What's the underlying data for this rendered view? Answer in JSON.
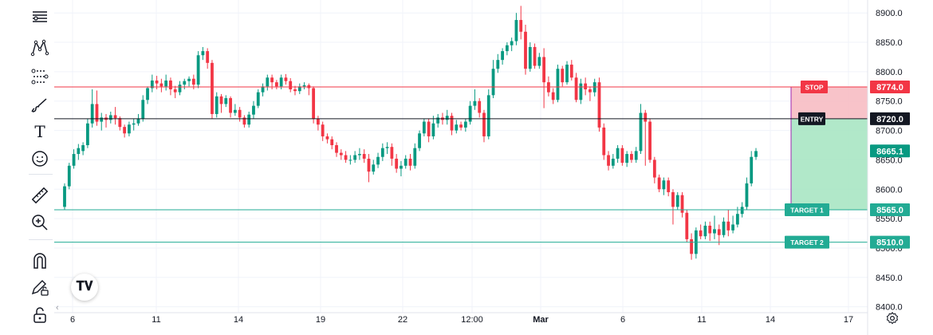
{
  "toolbar": {
    "tools": [
      {
        "name": "trend-lines-tool",
        "icon": "horizontal-lines-icon"
      },
      {
        "name": "patterns-tool",
        "icon": "xabcd-pattern-icon"
      },
      {
        "name": "forecasting-tool",
        "icon": "long-position-icon"
      },
      {
        "name": "brush-tool",
        "icon": "brush-icon"
      },
      {
        "name": "text-tool",
        "icon": "text-icon"
      },
      {
        "name": "emoji-tool",
        "icon": "smiley-icon"
      },
      {
        "name": "measure-tool",
        "icon": "ruler-icon"
      },
      {
        "name": "zoom-in-tool",
        "icon": "zoom-in-icon"
      },
      {
        "name": "magnet-tool",
        "icon": "magnet-icon"
      },
      {
        "name": "lock-drawings-tool",
        "icon": "pencil-lock-icon"
      },
      {
        "name": "lock-tool",
        "icon": "lock-open-icon"
      }
    ],
    "text_icon_glyph": "T"
  },
  "chart_data": {
    "type": "candlestick",
    "price_axis": {
      "ticks": [
        "8900.0",
        "8850.0",
        "8800.0",
        "8750.0",
        "8700.0",
        "8650.0",
        "8600.0",
        "8550.0",
        "8500.0",
        "8450.0",
        "8400.0"
      ],
      "ylim": [
        8390,
        8922
      ]
    },
    "time_axis": {
      "labels": [
        "6",
        "11",
        "14",
        "19",
        "22",
        "12:00",
        "Mar",
        "6",
        "11",
        "14",
        "17"
      ]
    },
    "levels": [
      {
        "label": "STOP",
        "price": 8774.0,
        "price_label": "8774.0",
        "color": "#f23645"
      },
      {
        "label": "ENTRY",
        "price": 8720.0,
        "price_label": "8720.0",
        "color": "#131722"
      },
      {
        "label": "TARGET 1",
        "price": 8565.0,
        "price_label": "8565.0",
        "color": "#22ab94"
      },
      {
        "label": "TARGET 2",
        "price": 8510.0,
        "price_label": "8510.0",
        "color": "#22ab94"
      }
    ],
    "current_price": {
      "value": 8665.1,
      "label": "8665.1",
      "color": "#089981"
    },
    "colors": {
      "up": "#089981",
      "down": "#f23645",
      "risk_fill": "#f7b9c0",
      "reward_fill": "#a3e4c0",
      "position_border": "#9c27b0"
    },
    "candles": [
      [
        8570,
        8605,
        8565,
        8610
      ],
      [
        8605,
        8640,
        8600,
        8645
      ],
      [
        8640,
        8660,
        8635,
        8668
      ],
      [
        8660,
        8670,
        8650,
        8677
      ],
      [
        8665,
        8675,
        8658,
        8680
      ],
      [
        8675,
        8712,
        8670,
        8720
      ],
      [
        8712,
        8745,
        8705,
        8770
      ],
      [
        8745,
        8715,
        8708,
        8768
      ],
      [
        8715,
        8722,
        8700,
        8730
      ],
      [
        8722,
        8718,
        8705,
        8728
      ],
      [
        8718,
        8726,
        8712,
        8732
      ],
      [
        8726,
        8721,
        8710,
        8740
      ],
      [
        8721,
        8706,
        8700,
        8724
      ],
      [
        8706,
        8695,
        8688,
        8710
      ],
      [
        8695,
        8710,
        8690,
        8715
      ],
      [
        8710,
        8712,
        8700,
        8720
      ],
      [
        8712,
        8720,
        8708,
        8728
      ],
      [
        8720,
        8752,
        8715,
        8760
      ],
      [
        8752,
        8772,
        8745,
        8775
      ],
      [
        8772,
        8785,
        8765,
        8795
      ],
      [
        8785,
        8780,
        8770,
        8793
      ],
      [
        8780,
        8775,
        8765,
        8788
      ],
      [
        8775,
        8785,
        8768,
        8795
      ],
      [
        8785,
        8770,
        8760,
        8790
      ],
      [
        8770,
        8765,
        8755,
        8776
      ],
      [
        8765,
        8778,
        8760,
        8784
      ],
      [
        8778,
        8784,
        8770,
        8788
      ],
      [
        8784,
        8788,
        8775,
        8792
      ],
      [
        8788,
        8778,
        8770,
        8795
      ],
      [
        8778,
        8828,
        8772,
        8835
      ],
      [
        8828,
        8835,
        8820,
        8842
      ],
      [
        8835,
        8815,
        8805,
        8840
      ],
      [
        8815,
        8728,
        8720,
        8820
      ],
      [
        8728,
        8758,
        8722,
        8765
      ],
      [
        8758,
        8745,
        8730,
        8762
      ],
      [
        8745,
        8755,
        8740,
        8760
      ],
      [
        8755,
        8730,
        8722,
        8758
      ],
      [
        8730,
        8735,
        8725,
        8745
      ],
      [
        8735,
        8722,
        8715,
        8740
      ],
      [
        8722,
        8710,
        8705,
        8726
      ],
      [
        8710,
        8727,
        8705,
        8732
      ],
      [
        8727,
        8742,
        8720,
        8750
      ],
      [
        8742,
        8765,
        8738,
        8770
      ],
      [
        8765,
        8775,
        8758,
        8780
      ],
      [
        8775,
        8790,
        8768,
        8795
      ],
      [
        8790,
        8782,
        8770,
        8795
      ],
      [
        8782,
        8775,
        8770,
        8786
      ],
      [
        8775,
        8790,
        8770,
        8795
      ],
      [
        8790,
        8784,
        8778,
        8796
      ],
      [
        8784,
        8770,
        8765,
        8789
      ],
      [
        8770,
        8767,
        8760,
        8776
      ],
      [
        8767,
        8775,
        8762,
        8780
      ],
      [
        8775,
        8777,
        8770,
        8782
      ],
      [
        8777,
        8772,
        8760,
        8780
      ],
      [
        8772,
        8720,
        8712,
        8775
      ],
      [
        8720,
        8710,
        8700,
        8725
      ],
      [
        8710,
        8690,
        8682,
        8715
      ],
      [
        8690,
        8685,
        8678,
        8695
      ],
      [
        8685,
        8675,
        8668,
        8690
      ],
      [
        8675,
        8662,
        8655,
        8680
      ],
      [
        8662,
        8658,
        8650,
        8668
      ],
      [
        8658,
        8650,
        8645,
        8665
      ],
      [
        8650,
        8650,
        8642,
        8658
      ],
      [
        8650,
        8658,
        8645,
        8665
      ],
      [
        8658,
        8660,
        8650,
        8670
      ],
      [
        8660,
        8652,
        8645,
        8668
      ],
      [
        8652,
        8630,
        8612,
        8660
      ],
      [
        8630,
        8642,
        8625,
        8650
      ],
      [
        8642,
        8655,
        8636,
        8662
      ],
      [
        8655,
        8670,
        8648,
        8678
      ],
      [
        8670,
        8672,
        8660,
        8680
      ],
      [
        8672,
        8652,
        8640,
        8678
      ],
      [
        8652,
        8635,
        8628,
        8660
      ],
      [
        8635,
        8640,
        8622,
        8648
      ],
      [
        8640,
        8652,
        8635,
        8658
      ],
      [
        8652,
        8640,
        8632,
        8660
      ],
      [
        8640,
        8670,
        8635,
        8678
      ],
      [
        8670,
        8695,
        8665,
        8700
      ],
      [
        8695,
        8715,
        8690,
        8720
      ],
      [
        8715,
        8690,
        8680,
        8720
      ],
      [
        8690,
        8712,
        8685,
        8725
      ],
      [
        8712,
        8722,
        8705,
        8728
      ],
      [
        8722,
        8718,
        8710,
        8730
      ],
      [
        8718,
        8725,
        8710,
        8735
      ],
      [
        8725,
        8700,
        8692,
        8730
      ],
      [
        8700,
        8710,
        8695,
        8718
      ],
      [
        8710,
        8705,
        8700,
        8715
      ],
      [
        8705,
        8715,
        8698,
        8720
      ],
      [
        8715,
        8742,
        8710,
        8750
      ],
      [
        8742,
        8750,
        8735,
        8770
      ],
      [
        8750,
        8730,
        8722,
        8755
      ],
      [
        8730,
        8690,
        8680,
        8735
      ],
      [
        8690,
        8760,
        8685,
        8770
      ],
      [
        8760,
        8805,
        8755,
        8820
      ],
      [
        8805,
        8820,
        8798,
        8830
      ],
      [
        8820,
        8835,
        8812,
        8840
      ],
      [
        8835,
        8845,
        8828,
        8850
      ],
      [
        8845,
        8852,
        8835,
        8858
      ],
      [
        8852,
        8888,
        8845,
        8900
      ],
      [
        8888,
        8868,
        8855,
        8912
      ],
      [
        8868,
        8805,
        8795,
        8880
      ],
      [
        8805,
        8842,
        8800,
        8850
      ],
      [
        8842,
        8810,
        8805,
        8848
      ],
      [
        8810,
        8825,
        8805,
        8832
      ],
      [
        8825,
        8782,
        8738,
        8840
      ],
      [
        8782,
        8765,
        8758,
        8792
      ],
      [
        8765,
        8752,
        8745,
        8772
      ],
      [
        8752,
        8805,
        8748,
        8812
      ],
      [
        8805,
        8782,
        8775,
        8810
      ],
      [
        8782,
        8812,
        8778,
        8818
      ],
      [
        8812,
        8790,
        8785,
        8820
      ],
      [
        8790,
        8752,
        8748,
        8798
      ],
      [
        8752,
        8780,
        8745,
        8788
      ],
      [
        8780,
        8770,
        8760,
        8790
      ],
      [
        8770,
        8765,
        8750,
        8775
      ],
      [
        8765,
        8782,
        8758,
        8788
      ],
      [
        8782,
        8705,
        8698,
        8790
      ],
      [
        8705,
        8658,
        8650,
        8712
      ],
      [
        8658,
        8640,
        8632,
        8665
      ],
      [
        8640,
        8652,
        8635,
        8660
      ],
      [
        8652,
        8670,
        8645,
        8675
      ],
      [
        8670,
        8645,
        8640,
        8675
      ],
      [
        8645,
        8660,
        8638,
        8665
      ],
      [
        8660,
        8650,
        8645,
        8665
      ],
      [
        8650,
        8665,
        8645,
        8672
      ],
      [
        8665,
        8730,
        8660,
        8745
      ],
      [
        8730,
        8715,
        8640,
        8735
      ],
      [
        8715,
        8650,
        8645,
        8720
      ],
      [
        8650,
        8620,
        8610,
        8655
      ],
      [
        8620,
        8600,
        8595,
        8625
      ],
      [
        8600,
        8615,
        8590,
        8620
      ],
      [
        8615,
        8595,
        8588,
        8620
      ],
      [
        8595,
        8570,
        8540,
        8600
      ],
      [
        8570,
        8590,
        8565,
        8595
      ],
      [
        8590,
        8560,
        8552,
        8595
      ],
      [
        8560,
        8515,
        8510,
        8565
      ],
      [
        8515,
        8490,
        8480,
        8525
      ],
      [
        8490,
        8530,
        8482,
        8535
      ],
      [
        8530,
        8520,
        8515,
        8540
      ],
      [
        8520,
        8538,
        8515,
        8545
      ],
      [
        8538,
        8525,
        8512,
        8545
      ],
      [
        8525,
        8532,
        8515,
        8555
      ],
      [
        8532,
        8522,
        8505,
        8540
      ],
      [
        8522,
        8545,
        8518,
        8552
      ],
      [
        8545,
        8530,
        8520,
        8565
      ],
      [
        8530,
        8540,
        8525,
        8555
      ],
      [
        8540,
        8558,
        8535,
        8570
      ],
      [
        8558,
        8570,
        8552,
        8578
      ],
      [
        8570,
        8610,
        8565,
        8620
      ],
      [
        8610,
        8655,
        8605,
        8665
      ],
      [
        8655,
        8665,
        8650,
        8670
      ]
    ]
  }
}
